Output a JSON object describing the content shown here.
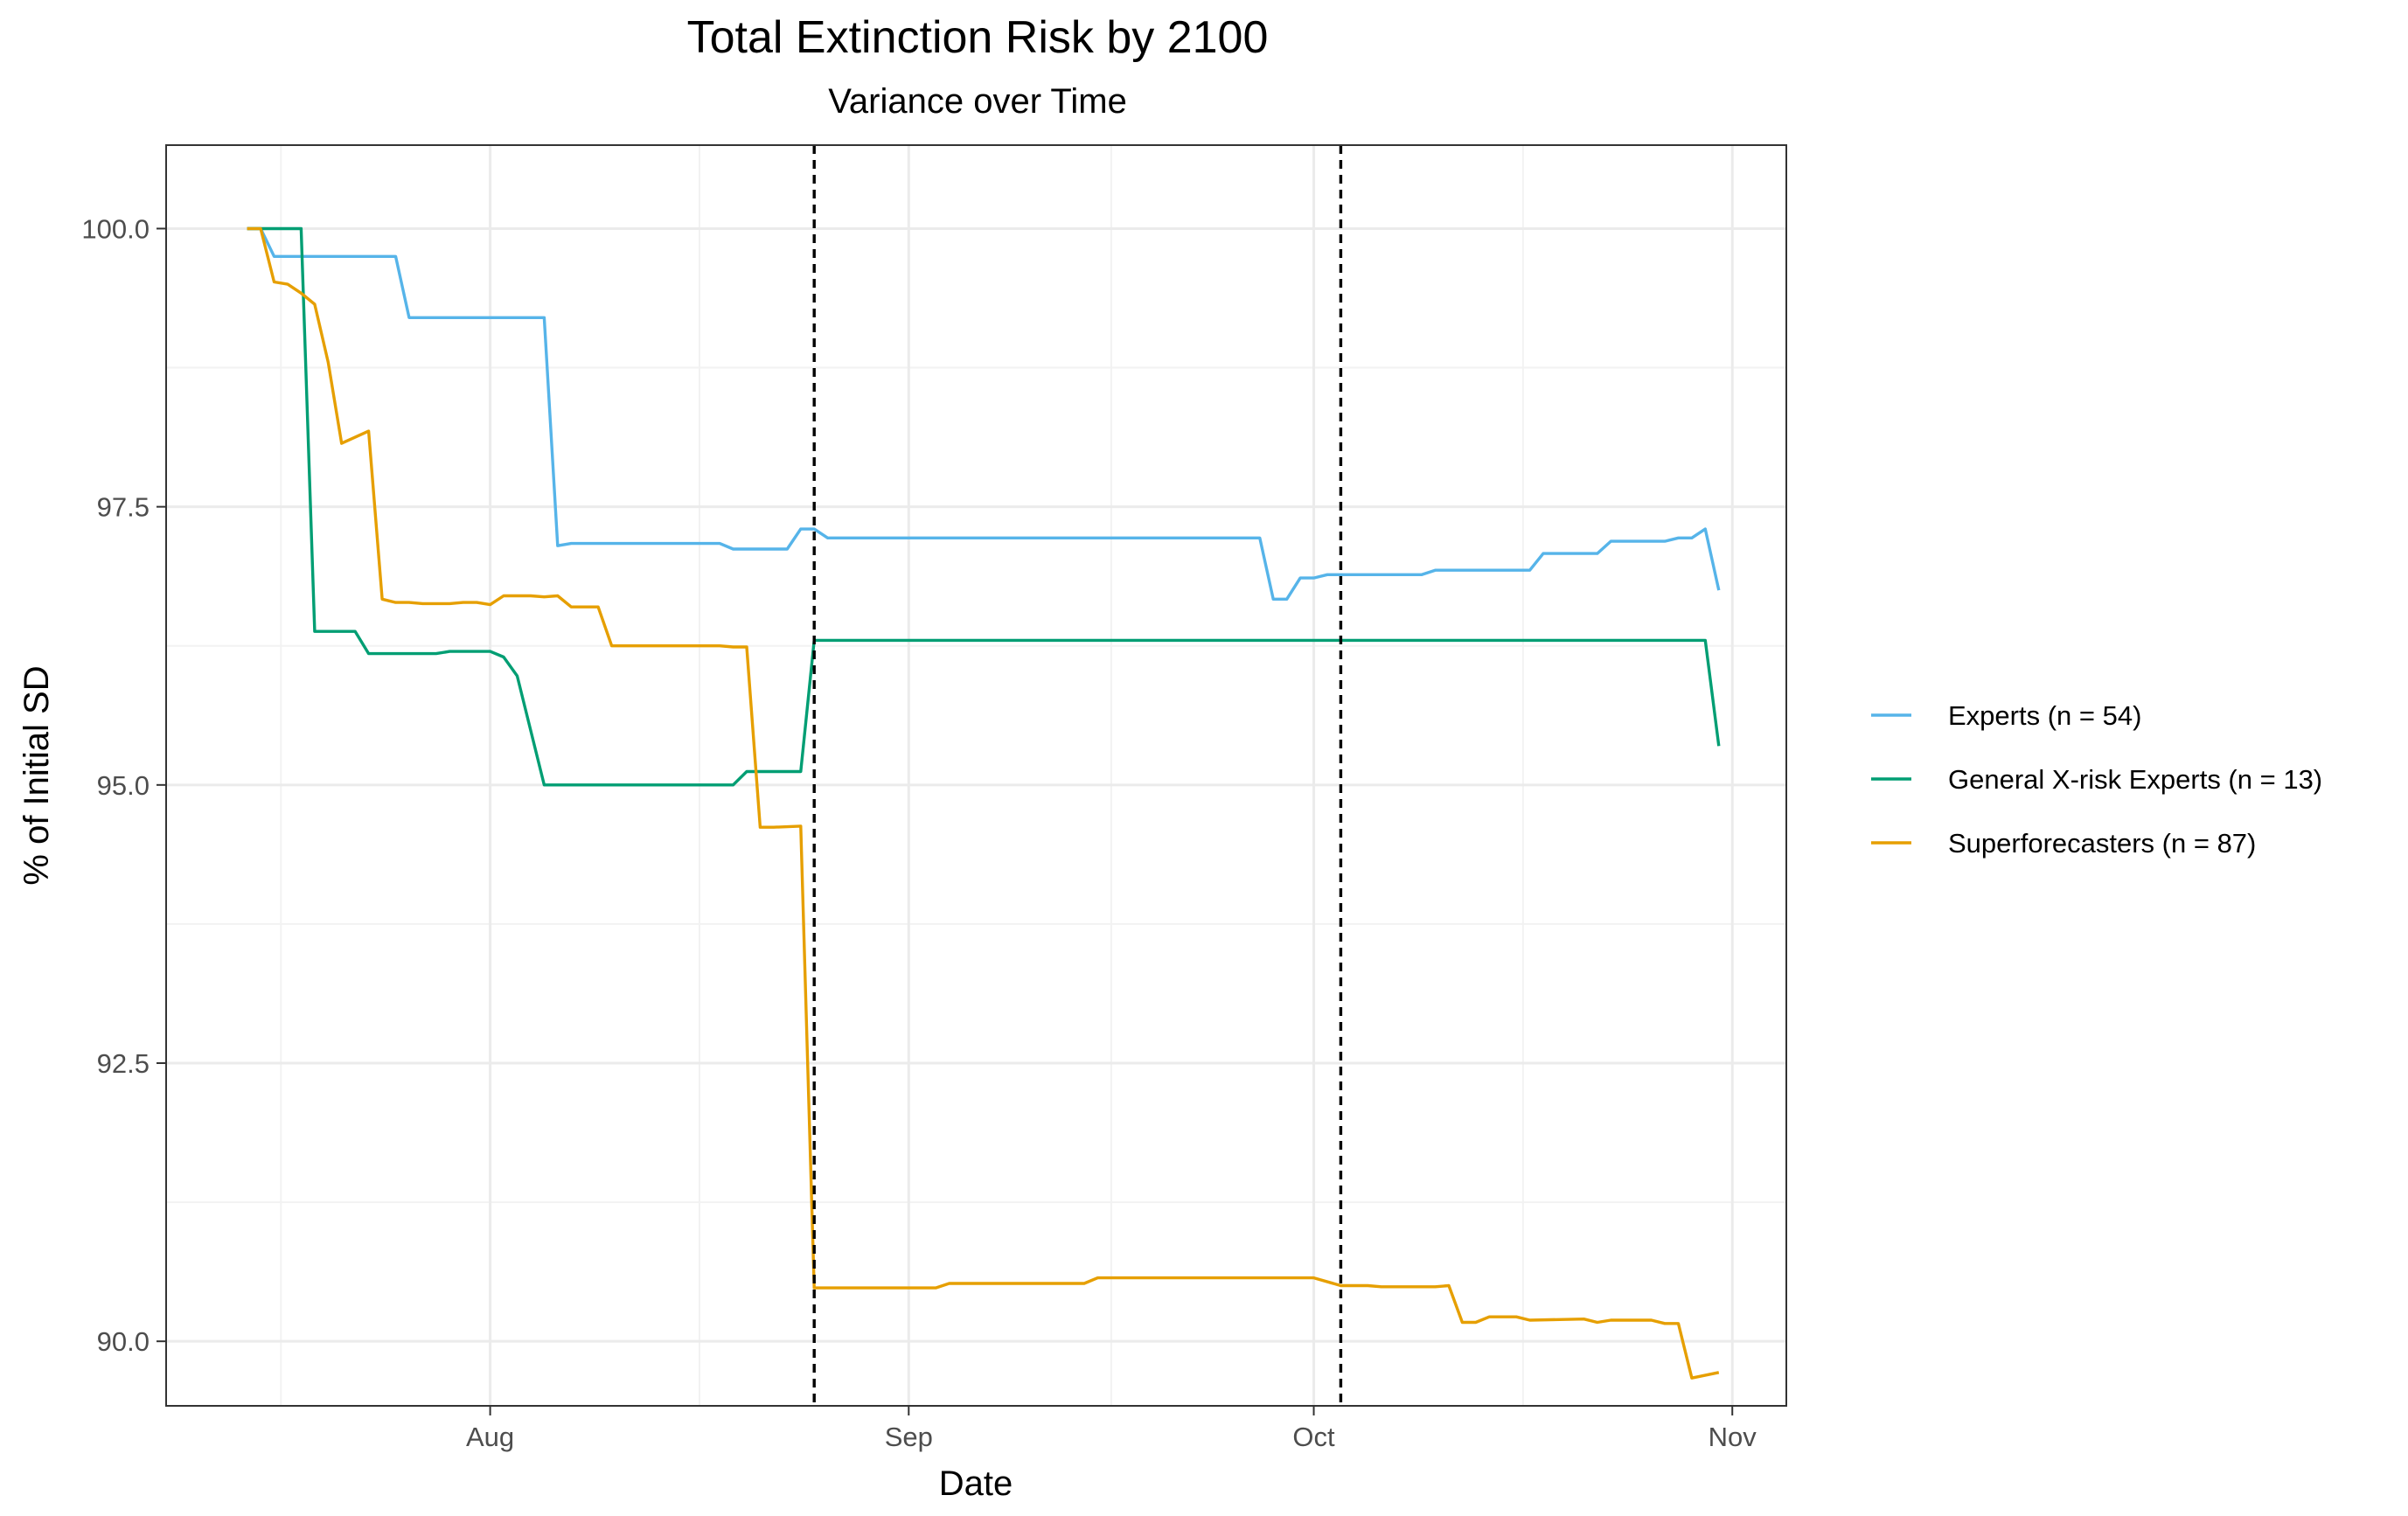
{
  "chart_data": {
    "type": "line",
    "title": "Total Extinction Risk by 2100",
    "subtitle": "Variance over Time",
    "xlabel": "Date",
    "ylabel": "% of Initial SD",
    "x_ticks": [
      {
        "date": "2022-08-01",
        "label": "Aug"
      },
      {
        "date": "2022-09-01",
        "label": "Sep"
      },
      {
        "date": "2022-10-01",
        "label": "Oct"
      },
      {
        "date": "2022-11-01",
        "label": "Nov"
      }
    ],
    "y_ticks": [
      "90.0",
      "92.5",
      "95.0",
      "97.5",
      "100.0"
    ],
    "xlim": [
      "2022-07-08",
      "2022-11-05"
    ],
    "ylim": [
      89.42,
      100.75
    ],
    "grid": true,
    "legend_position": "right",
    "vlines": [
      "2022-08-25",
      "2022-10-03"
    ],
    "series": [
      {
        "name": "Experts (n = 54)",
        "color": "#56B4E9",
        "points": [
          [
            "2022-07-14",
            100.0
          ],
          [
            "2022-07-15",
            100.0
          ],
          [
            "2022-07-16",
            99.75
          ],
          [
            "2022-07-17",
            99.75
          ],
          [
            "2022-07-25",
            99.75
          ],
          [
            "2022-07-26",
            99.2
          ],
          [
            "2022-08-05",
            99.2
          ],
          [
            "2022-08-06",
            97.15
          ],
          [
            "2022-08-07",
            97.17
          ],
          [
            "2022-08-18",
            97.17
          ],
          [
            "2022-08-19",
            97.12
          ],
          [
            "2022-08-23",
            97.12
          ],
          [
            "2022-08-24",
            97.3
          ],
          [
            "2022-08-25",
            97.3
          ],
          [
            "2022-08-26",
            97.22
          ],
          [
            "2022-09-27",
            97.22
          ],
          [
            "2022-09-28",
            96.67
          ],
          [
            "2022-09-29",
            96.67
          ],
          [
            "2022-09-30",
            96.86
          ],
          [
            "2022-10-01",
            96.86
          ],
          [
            "2022-10-02",
            96.89
          ],
          [
            "2022-10-09",
            96.89
          ],
          [
            "2022-10-10",
            96.93
          ],
          [
            "2022-10-17",
            96.93
          ],
          [
            "2022-10-18",
            97.08
          ],
          [
            "2022-10-22",
            97.08
          ],
          [
            "2022-10-23",
            97.19
          ],
          [
            "2022-10-27",
            97.19
          ],
          [
            "2022-10-28",
            97.22
          ],
          [
            "2022-10-29",
            97.22
          ],
          [
            "2022-10-30",
            97.3
          ],
          [
            "2022-10-31",
            96.75
          ]
        ]
      },
      {
        "name": "General X-risk Experts (n = 13)",
        "color": "#009E73",
        "points": [
          [
            "2022-07-14",
            100.0
          ],
          [
            "2022-07-18",
            100.0
          ],
          [
            "2022-07-19",
            96.38
          ],
          [
            "2022-07-22",
            96.38
          ],
          [
            "2022-07-23",
            96.18
          ],
          [
            "2022-07-28",
            96.18
          ],
          [
            "2022-07-29",
            96.2
          ],
          [
            "2022-08-01",
            96.2
          ],
          [
            "2022-08-02",
            96.15
          ],
          [
            "2022-08-03",
            95.98
          ],
          [
            "2022-08-05",
            95.0
          ],
          [
            "2022-08-19",
            95.0
          ],
          [
            "2022-08-20",
            95.12
          ],
          [
            "2022-08-24",
            95.12
          ],
          [
            "2022-08-25",
            96.3
          ],
          [
            "2022-10-30",
            96.3
          ],
          [
            "2022-10-31",
            95.35
          ]
        ]
      },
      {
        "name": "Superforecasters (n = 87)",
        "color": "#E69F00",
        "points": [
          [
            "2022-07-14",
            100.0
          ],
          [
            "2022-07-15",
            100.0
          ],
          [
            "2022-07-16",
            99.52
          ],
          [
            "2022-07-17",
            99.5
          ],
          [
            "2022-07-18",
            99.42
          ],
          [
            "2022-07-19",
            99.32
          ],
          [
            "2022-07-20",
            98.8
          ],
          [
            "2022-07-21",
            98.07
          ],
          [
            "2022-07-23",
            98.18
          ],
          [
            "2022-07-24",
            96.67
          ],
          [
            "2022-07-25",
            96.64
          ],
          [
            "2022-07-26",
            96.64
          ],
          [
            "2022-07-27",
            96.63
          ],
          [
            "2022-07-29",
            96.63
          ],
          [
            "2022-07-30",
            96.64
          ],
          [
            "2022-07-31",
            96.64
          ],
          [
            "2022-08-01",
            96.62
          ],
          [
            "2022-08-02",
            96.7
          ],
          [
            "2022-08-04",
            96.7
          ],
          [
            "2022-08-05",
            96.69
          ],
          [
            "2022-08-06",
            96.7
          ],
          [
            "2022-08-07",
            96.6
          ],
          [
            "2022-08-09",
            96.6
          ],
          [
            "2022-08-10",
            96.25
          ],
          [
            "2022-08-18",
            96.25
          ],
          [
            "2022-08-19",
            96.24
          ],
          [
            "2022-08-20",
            96.24
          ],
          [
            "2022-08-21",
            94.62
          ],
          [
            "2022-08-22",
            94.62
          ],
          [
            "2022-08-24",
            94.63
          ],
          [
            "2022-08-25",
            90.48
          ],
          [
            "2022-09-03",
            90.48
          ],
          [
            "2022-09-04",
            90.52
          ],
          [
            "2022-09-14",
            90.52
          ],
          [
            "2022-09-15",
            90.57
          ],
          [
            "2022-10-01",
            90.57
          ],
          [
            "2022-10-03",
            90.5
          ],
          [
            "2022-10-05",
            90.5
          ],
          [
            "2022-10-06",
            90.49
          ],
          [
            "2022-10-10",
            90.49
          ],
          [
            "2022-10-11",
            90.5
          ],
          [
            "2022-10-12",
            90.17
          ],
          [
            "2022-10-13",
            90.17
          ],
          [
            "2022-10-14",
            90.22
          ],
          [
            "2022-10-16",
            90.22
          ],
          [
            "2022-10-17",
            90.19
          ],
          [
            "2022-10-21",
            90.2
          ],
          [
            "2022-10-22",
            90.17
          ],
          [
            "2022-10-23",
            90.19
          ],
          [
            "2022-10-26",
            90.19
          ],
          [
            "2022-10-27",
            90.16
          ],
          [
            "2022-10-28",
            90.16
          ],
          [
            "2022-10-29",
            89.67
          ],
          [
            "2022-10-31",
            89.72
          ]
        ]
      }
    ]
  }
}
